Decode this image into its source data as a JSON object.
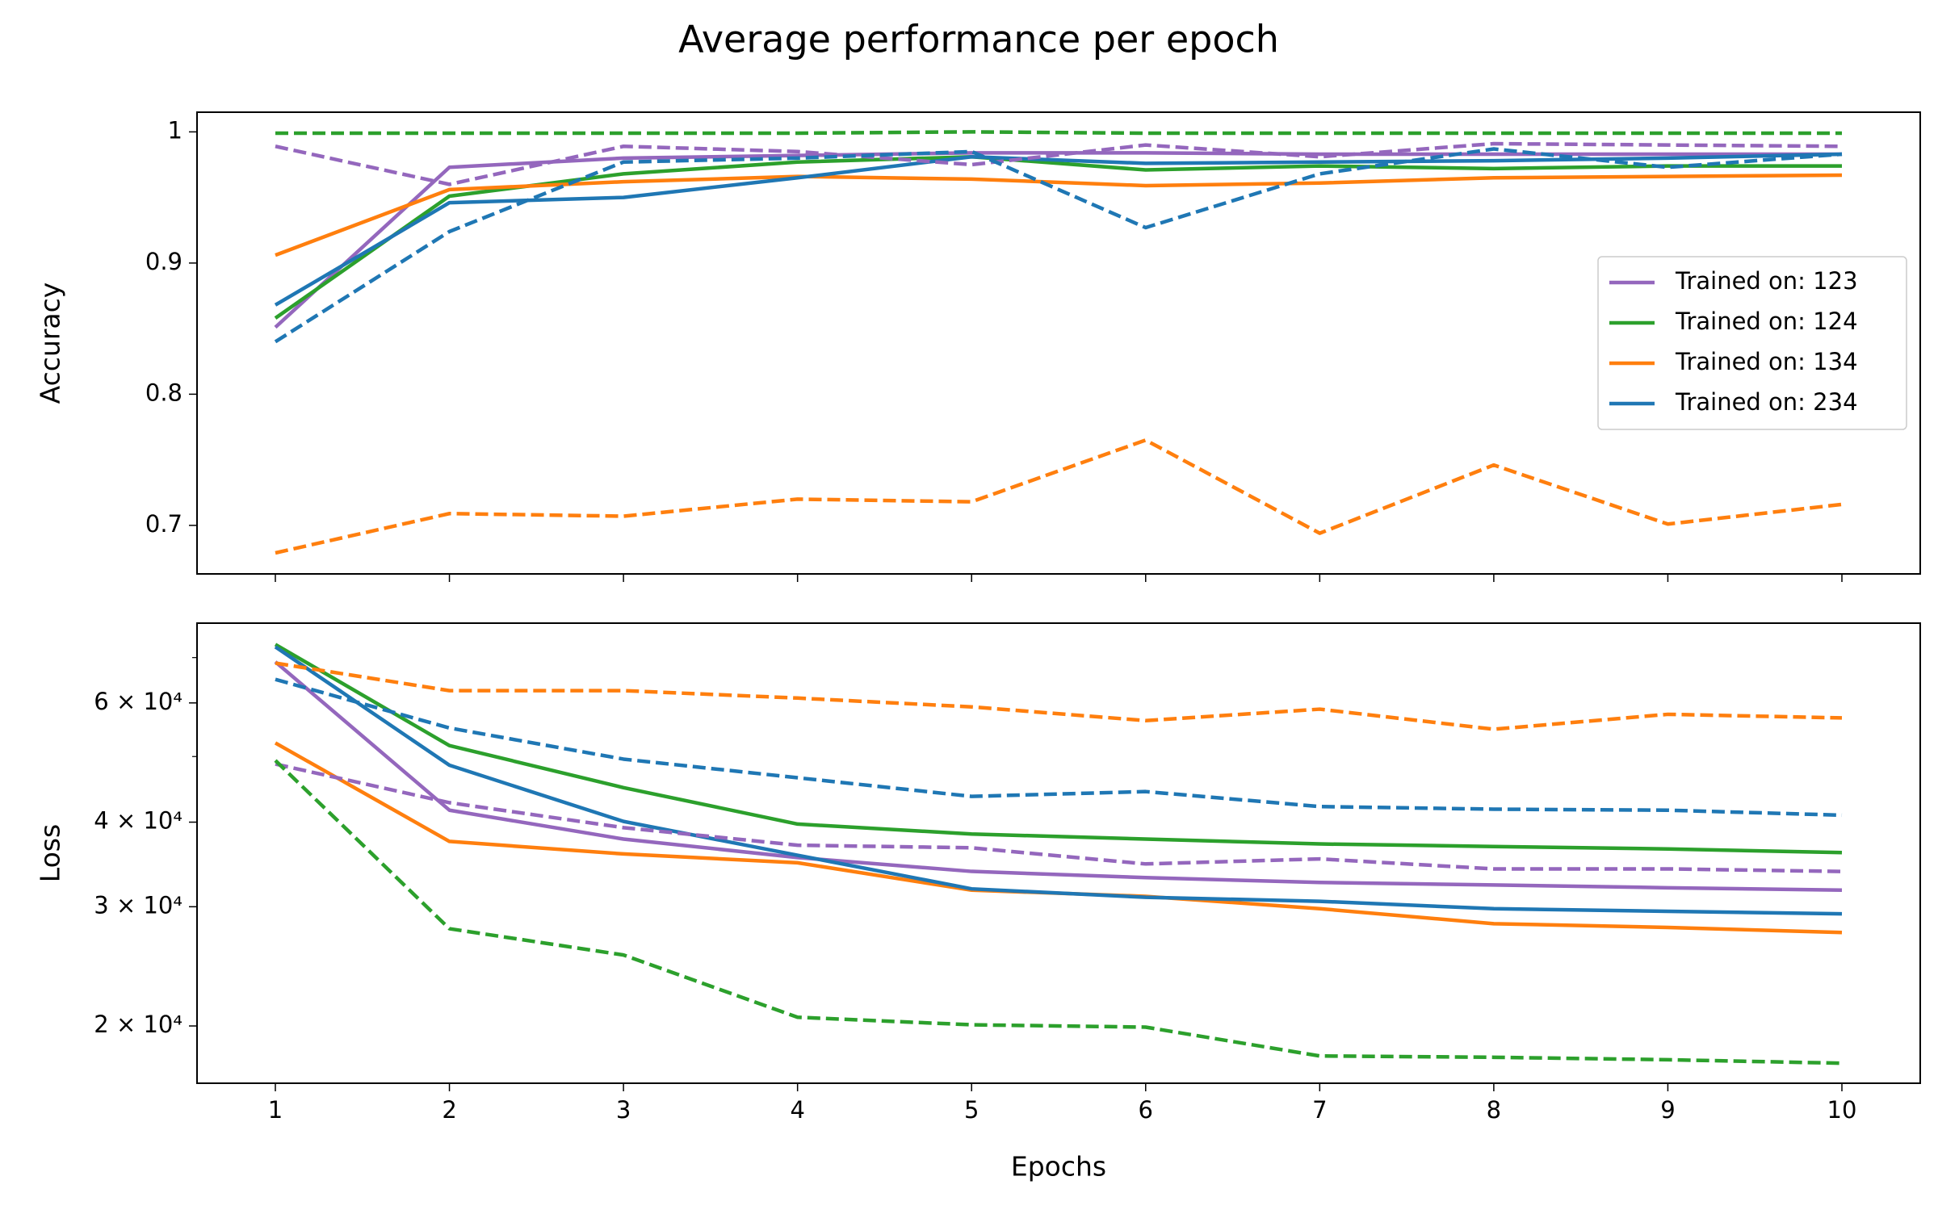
{
  "title": "Average performance per epoch",
  "chart_data": [
    {
      "type": "line",
      "ylabel": "Accuracy",
      "show_xtick_labels": false,
      "x": [
        1,
        2,
        3,
        4,
        5,
        6,
        7,
        8,
        9,
        10
      ],
      "xlim": [
        0.55,
        10.45
      ],
      "xticks": [
        1,
        2,
        3,
        4,
        5,
        6,
        7,
        8,
        9,
        10
      ],
      "ylim": [
        0.663,
        1.015
      ],
      "yticks": [
        0.7,
        0.8,
        0.9,
        1.0
      ],
      "legend": "center right",
      "series": [
        {
          "name": "Trained on: 123",
          "color": "#9467bd",
          "dashed": false,
          "values": [
            0.851,
            0.973,
            0.98,
            0.982,
            0.984,
            0.984,
            0.983,
            0.983,
            0.983,
            0.983
          ]
        },
        {
          "name": "Trained on: 124",
          "color": "#2ca02c",
          "dashed": false,
          "values": [
            0.858,
            0.951,
            0.968,
            0.977,
            0.981,
            0.971,
            0.974,
            0.972,
            0.974,
            0.974
          ]
        },
        {
          "name": "Trained on: 134",
          "color": "#ff7f0e",
          "dashed": false,
          "values": [
            0.906,
            0.956,
            0.962,
            0.966,
            0.964,
            0.959,
            0.961,
            0.965,
            0.966,
            0.967
          ]
        },
        {
          "name": "Trained on: 234",
          "color": "#1f77b4",
          "dashed": false,
          "values": [
            0.868,
            0.946,
            0.95,
            0.965,
            0.981,
            0.976,
            0.977,
            0.978,
            0.98,
            0.983
          ]
        },
        {
          "color": "#9467bd",
          "dashed": true,
          "values": [
            0.989,
            0.96,
            0.989,
            0.985,
            0.975,
            0.99,
            0.981,
            0.991,
            0.99,
            0.989
          ]
        },
        {
          "color": "#2ca02c",
          "dashed": true,
          "values": [
            0.999,
            0.999,
            0.999,
            0.999,
            1.0,
            0.999,
            0.999,
            0.999,
            0.999,
            0.999
          ]
        },
        {
          "color": "#ff7f0e",
          "dashed": true,
          "values": [
            0.679,
            0.709,
            0.707,
            0.72,
            0.718,
            0.765,
            0.694,
            0.746,
            0.701,
            0.716
          ]
        },
        {
          "color": "#1f77b4",
          "dashed": true,
          "values": [
            0.84,
            0.924,
            0.977,
            0.98,
            0.985,
            0.927,
            0.968,
            0.987,
            0.973,
            0.983
          ]
        }
      ]
    },
    {
      "type": "line",
      "ylabel": "Loss",
      "xlabel": "Epochs",
      "show_xtick_labels": true,
      "log_y": true,
      "x": [
        1,
        2,
        3,
        4,
        5,
        6,
        7,
        8,
        9,
        10
      ],
      "xlim": [
        0.55,
        10.45
      ],
      "xticks": [
        1,
        2,
        3,
        4,
        5,
        6,
        7,
        8,
        9,
        10
      ],
      "ylim": [
        16460,
        78700
      ],
      "yticks": [
        {
          "value": 20000,
          "label": "2 × 10⁴"
        },
        {
          "value": 30000,
          "label": "3 × 10⁴"
        },
        {
          "value": 40000,
          "label": "4 × 10⁴"
        },
        {
          "value": 60000,
          "label": "6 × 10⁴"
        }
      ],
      "minor_yticks": [
        50000,
        70000
      ],
      "series": [
        {
          "color": "#9467bd",
          "dashed": false,
          "values": [
            69000,
            41660,
            37760,
            35460,
            33830,
            33120,
            32580,
            32300,
            32000,
            31740
          ]
        },
        {
          "color": "#2ca02c",
          "dashed": false,
          "values": [
            73200,
            51900,
            44980,
            39740,
            38420,
            37760,
            37140,
            36820,
            36520,
            36060
          ]
        },
        {
          "color": "#ff7f0e",
          "dashed": false,
          "values": [
            52360,
            37460,
            35900,
            34840,
            31740,
            31080,
            29800,
            28320,
            27960,
            27480
          ]
        },
        {
          "color": "#1f77b4",
          "dashed": false,
          "values": [
            72600,
            48540,
            40100,
            35740,
            31880,
            30980,
            30560,
            29800,
            29540,
            29280
          ]
        },
        {
          "color": "#9467bd",
          "dashed": true,
          "values": [
            48740,
            42740,
            39260,
            36980,
            36660,
            34700,
            35300,
            34120,
            34120,
            33820
          ]
        },
        {
          "color": "#2ca02c",
          "dashed": true,
          "values": [
            49340,
            27840,
            25460,
            20600,
            20080,
            19920,
            18060,
            17980,
            17830,
            17620
          ]
        },
        {
          "color": "#ff7f0e",
          "dashed": true,
          "values": [
            68700,
            62560,
            62560,
            61000,
            59200,
            56500,
            58740,
            54860,
            57720,
            57020
          ]
        },
        {
          "color": "#1f77b4",
          "dashed": true,
          "values": [
            65000,
            55100,
            49560,
            46520,
            43660,
            44380,
            42180,
            41800,
            41660,
            40960
          ]
        }
      ]
    }
  ]
}
